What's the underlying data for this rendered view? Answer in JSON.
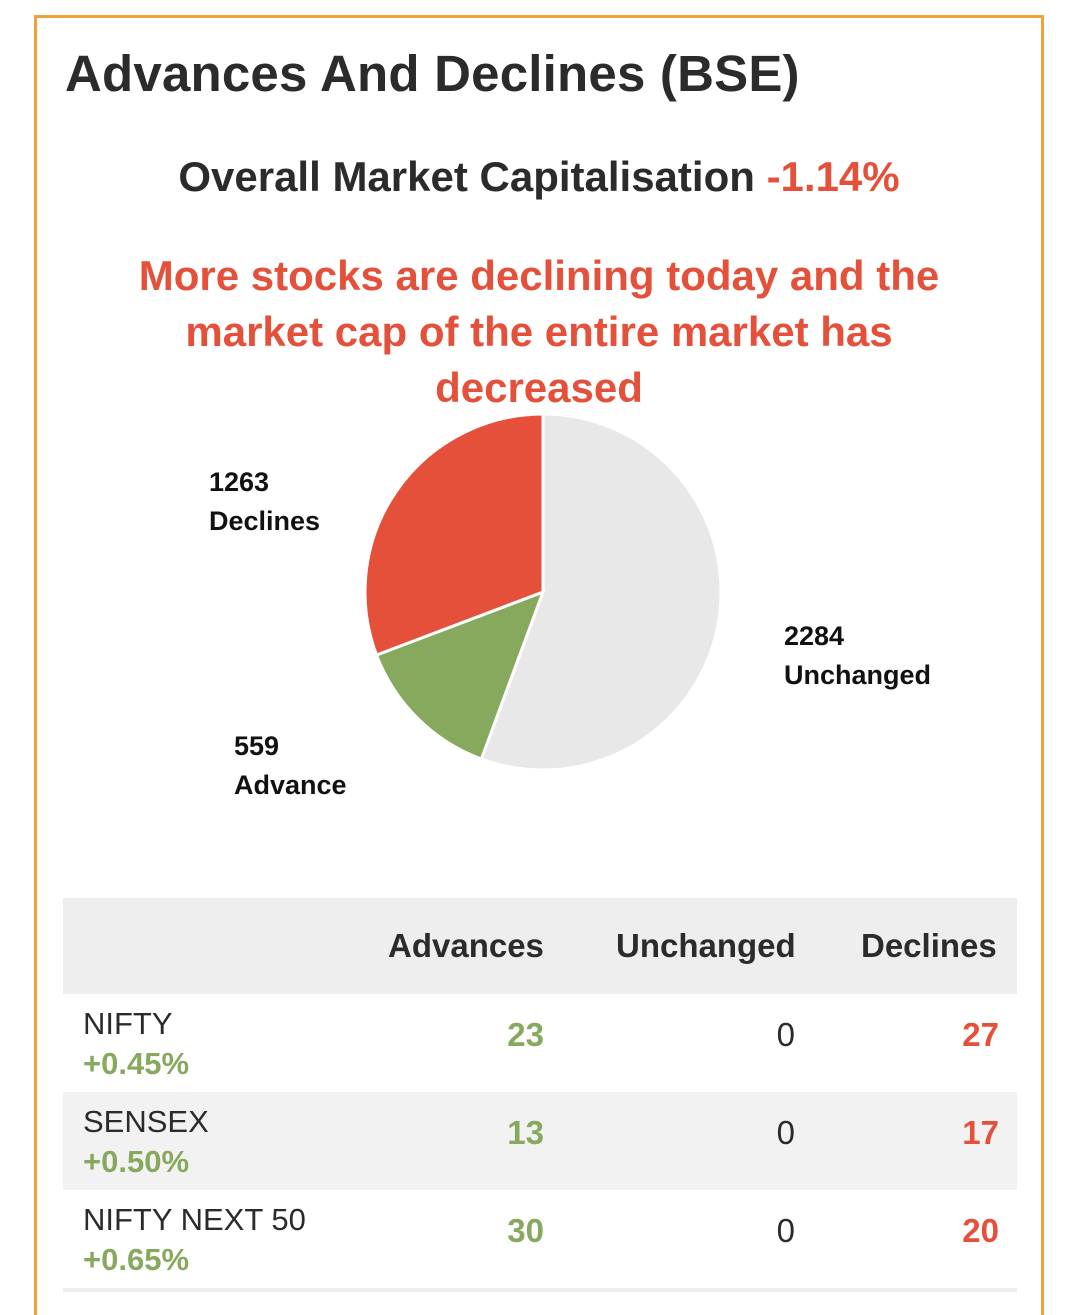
{
  "title": "Advances And Declines (BSE)",
  "market_cap": {
    "label": "Overall Market Capitalisation",
    "value": "-1.14%"
  },
  "headline": "More stocks are declining today and the market cap of the entire market has decreased",
  "colors": {
    "accent_border": "#f0a33a",
    "decline_red": "#e4503a",
    "advance_green": "#86a95e",
    "unchanged_grey": "#e8e8e8"
  },
  "chart_data": {
    "type": "pie",
    "slices": [
      {
        "label": "Unchanged",
        "value": 2284,
        "color": "#e8e8e8"
      },
      {
        "label": "Advance",
        "value": 559,
        "color": "#86a95e"
      },
      {
        "label": "Declines",
        "value": 1263,
        "color": "#e4503a"
      }
    ]
  },
  "table": {
    "headers": [
      "",
      "Advances",
      "Unchanged",
      "Declines"
    ],
    "rows": [
      {
        "name": "NIFTY",
        "change": "+0.45%",
        "advances": "23",
        "unchanged": "0",
        "declines": "27"
      },
      {
        "name": "SENSEX",
        "change": "+0.50%",
        "advances": "13",
        "unchanged": "0",
        "declines": "17"
      },
      {
        "name": "NIFTY NEXT 50",
        "change": "+0.65%",
        "advances": "30",
        "unchanged": "0",
        "declines": "20"
      }
    ]
  }
}
